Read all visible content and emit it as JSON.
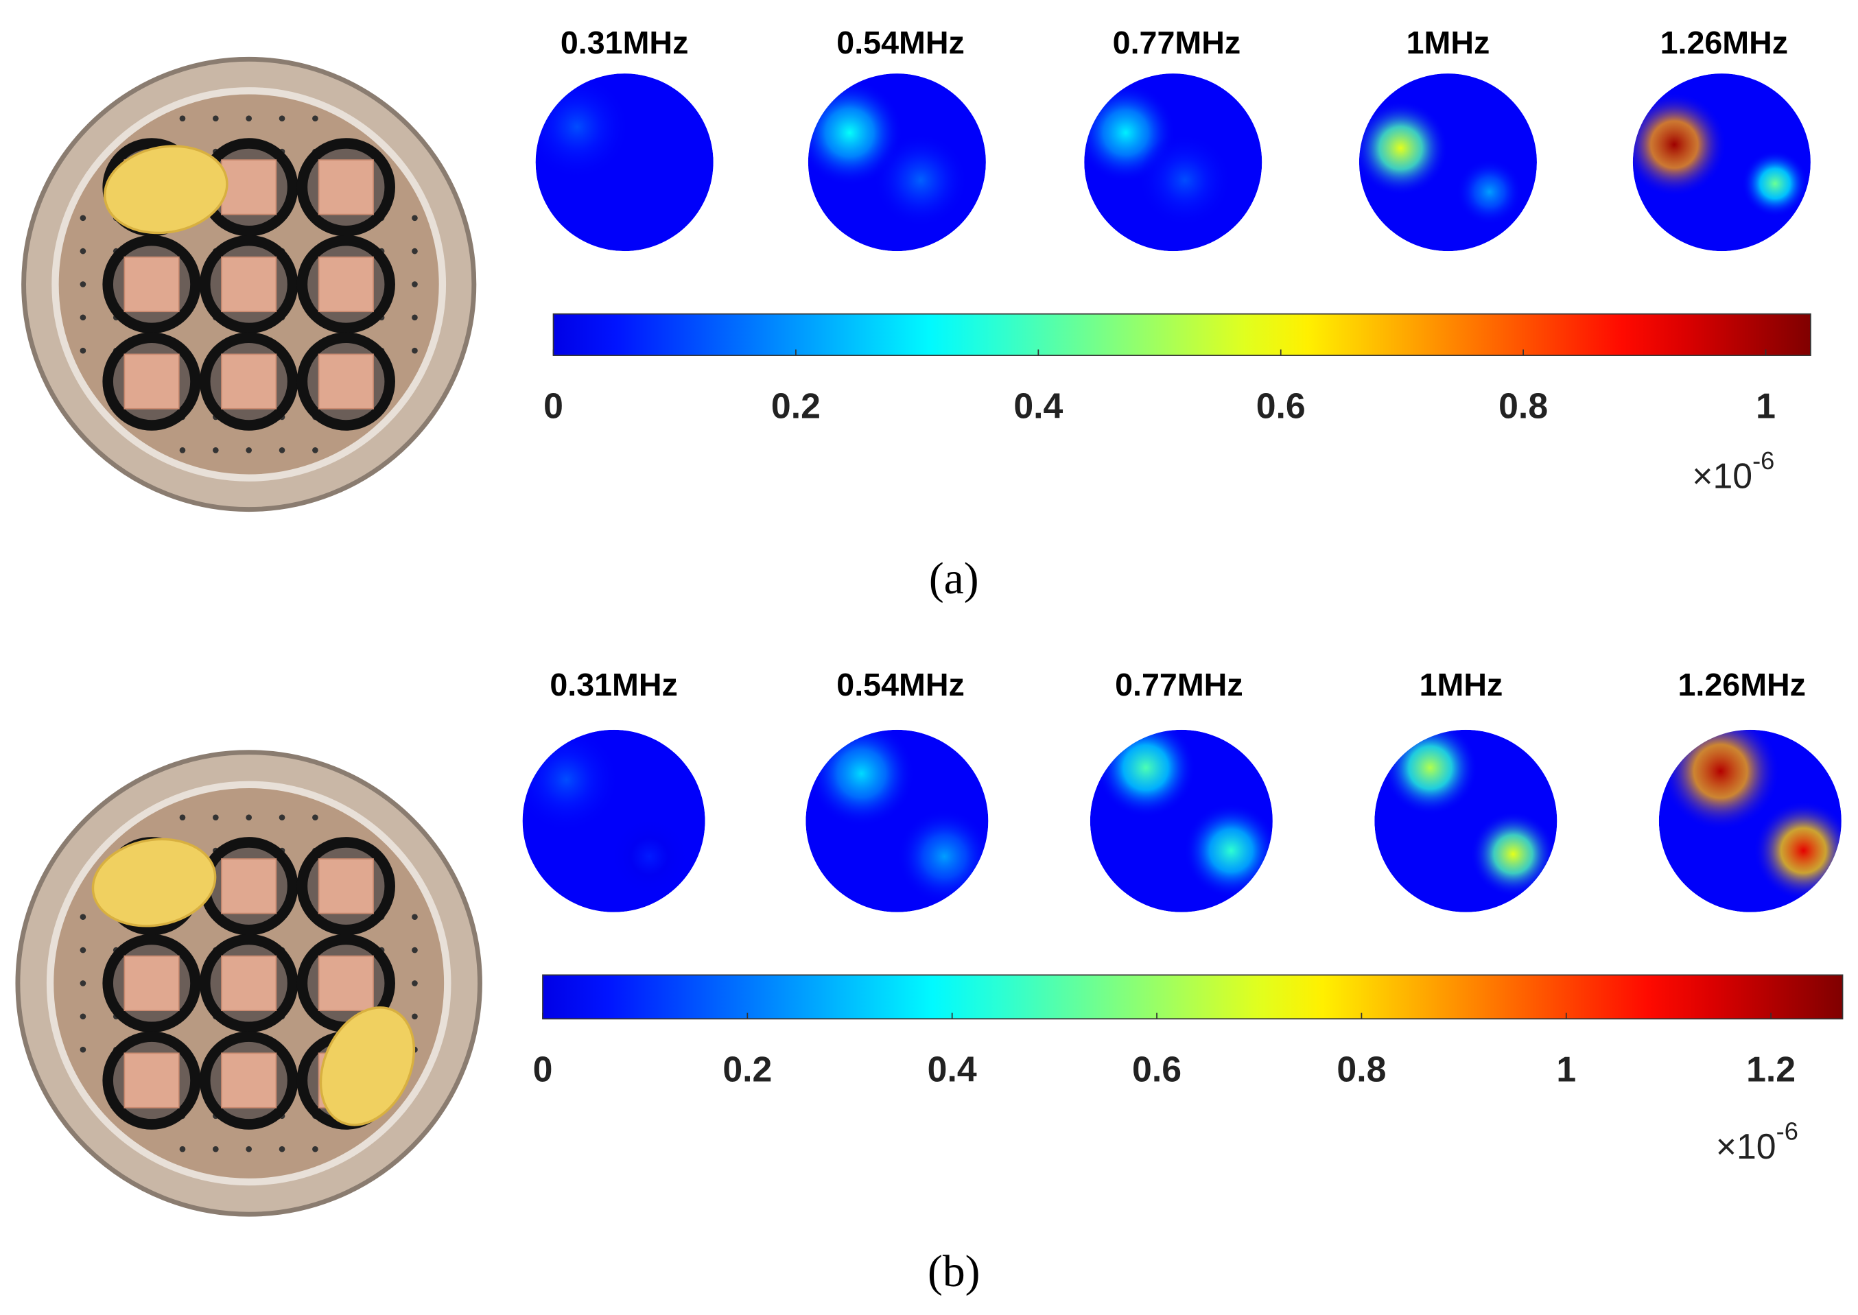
{
  "panels": [
    {
      "caption": "(a)",
      "frequencies": [
        "0.31MHz",
        "0.54MHz",
        "0.77MHz",
        "1MHz",
        "1.26MHz"
      ],
      "colorbar": {
        "lim": [
          0,
          1.037
        ],
        "ticks": [
          0,
          0.2,
          0.4,
          0.6,
          0.8,
          1
        ],
        "multiplier": "×10",
        "exponent": "-6"
      }
    },
    {
      "caption": "(b)",
      "frequencies": [
        "0.31MHz",
        "0.54MHz",
        "0.77MHz",
        "1MHz",
        "1.26MHz"
      ],
      "colorbar": {
        "lim": [
          0,
          1.27
        ],
        "ticks": [
          0,
          0.2,
          0.4,
          0.6,
          0.8,
          1,
          1.2
        ],
        "multiplier": "×10",
        "exponent": "-6"
      }
    }
  ]
}
